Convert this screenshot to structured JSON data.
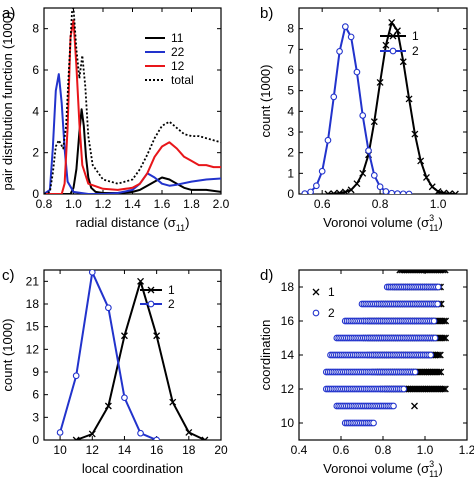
{
  "colors": {
    "black": "#000000",
    "blue": "#2233cc",
    "red": "#e8161a",
    "grey": "#777777",
    "marker_fill": "#ffffff"
  },
  "chart_data": [
    {
      "panel": "a)",
      "type": "line",
      "xlabel": "radial distance",
      "xlabel_sym": "(σ",
      "xlabel_sub": "11",
      "xlabel_end": ")",
      "ylabel": "pair distribution function",
      "ylabel_unit": "(1000)",
      "xlim": [
        0.8,
        2.0
      ],
      "ylim": [
        0,
        9
      ],
      "xticks": [
        0.8,
        1.0,
        1.2,
        1.4,
        1.6,
        1.8,
        2.0
      ],
      "xtick_labels": [
        "0.8",
        "1.0",
        "1.2",
        "1.4",
        "1.6",
        "1.8",
        "2.0"
      ],
      "yticks": [
        0,
        2,
        4,
        6,
        8
      ],
      "ytick_labels": [
        "0",
        "2",
        "4",
        "6",
        "8"
      ],
      "legend_position": "top-right",
      "series": [
        {
          "name": "11",
          "color": "black",
          "dash": "solid",
          "marker": "none",
          "x": [
            0.8,
            0.98,
            1.0,
            1.02,
            1.04,
            1.055,
            1.07,
            1.085,
            1.1,
            1.12,
            1.15,
            1.2,
            1.3,
            1.4,
            1.45,
            1.5,
            1.55,
            1.6,
            1.65,
            1.7,
            1.75,
            1.8,
            1.85,
            1.9,
            1.95,
            2.0
          ],
          "y": [
            0,
            0,
            0.3,
            1.2,
            3.0,
            4.1,
            3.3,
            1.8,
            0.8,
            0.3,
            0.1,
            0.05,
            0.05,
            0.1,
            0.2,
            0.4,
            0.6,
            0.8,
            0.7,
            0.5,
            0.3,
            0.2,
            0.2,
            0.2,
            0.15,
            0.1
          ]
        },
        {
          "name": "22",
          "color": "blue",
          "dash": "solid",
          "marker": "none",
          "x": [
            0.8,
            0.84,
            0.86,
            0.88,
            0.9,
            0.92,
            0.94,
            0.96,
            1.0,
            1.1,
            1.2,
            1.3,
            1.4,
            1.45,
            1.5,
            1.55,
            1.6,
            1.65,
            1.7,
            1.8,
            1.9,
            2.0
          ],
          "y": [
            0,
            0.2,
            2.2,
            5.0,
            5.8,
            4.4,
            2.2,
            0.6,
            0.1,
            0,
            0,
            0.05,
            0.2,
            0.5,
            1.0,
            0.8,
            0.5,
            0.4,
            0.45,
            0.6,
            0.7,
            0.75
          ]
        },
        {
          "name": "12",
          "color": "red",
          "dash": "solid",
          "marker": "none",
          "x": [
            0.8,
            0.92,
            0.94,
            0.96,
            0.98,
            1.0,
            1.02,
            1.04,
            1.06,
            1.1,
            1.2,
            1.3,
            1.4,
            1.45,
            1.5,
            1.55,
            1.6,
            1.65,
            1.7,
            1.75,
            1.8,
            1.85,
            1.9,
            1.95,
            2.0
          ],
          "y": [
            0,
            0,
            0.5,
            3.2,
            7.6,
            8.4,
            6.2,
            3.4,
            1.4,
            0.5,
            0.25,
            0.2,
            0.3,
            0.5,
            1.0,
            1.8,
            2.3,
            2.5,
            2.2,
            1.8,
            1.6,
            1.4,
            1.4,
            1.3,
            1.3
          ]
        },
        {
          "name": "total",
          "color": "black",
          "dash": "dotted",
          "marker": "none",
          "x": [
            0.8,
            0.84,
            0.86,
            0.88,
            0.9,
            0.93,
            0.95,
            0.97,
            0.99,
            1.0,
            1.02,
            1.04,
            1.06,
            1.08,
            1.1,
            1.13,
            1.2,
            1.3,
            1.4,
            1.45,
            1.5,
            1.55,
            1.6,
            1.65,
            1.7,
            1.75,
            1.8,
            1.85,
            1.9,
            1.95,
            2.0
          ],
          "y": [
            0,
            0.1,
            1.0,
            2.3,
            2.6,
            2.2,
            3.3,
            6.2,
            8.8,
            9.0,
            7.0,
            5.6,
            6.7,
            5.2,
            2.8,
            1.4,
            0.7,
            0.5,
            0.7,
            1.2,
            1.9,
            2.7,
            3.3,
            3.5,
            3.2,
            2.9,
            2.8,
            2.8,
            2.7,
            2.6,
            2.5
          ]
        }
      ]
    },
    {
      "panel": "b)",
      "type": "line",
      "xlabel": "Voronoi volume",
      "xlabel_sym": "(σ",
      "xlabel_sup": "3",
      "xlabel_sub": "11",
      "xlabel_end": ")",
      "ylabel": "count (1000)",
      "xlim": [
        0.52,
        1.1
      ],
      "ylim": [
        0,
        9
      ],
      "xticks": [
        0.6,
        0.8,
        1.0
      ],
      "xtick_labels": [
        "0.6",
        "0.8",
        "1.0"
      ],
      "yticks": [
        0,
        1,
        2,
        3,
        4,
        5,
        6,
        7,
        8
      ],
      "ytick_labels": [
        "0",
        "1",
        "2",
        "3",
        "4",
        "5",
        "6",
        "7",
        "8"
      ],
      "legend_position": "top-right",
      "series": [
        {
          "name": "1",
          "color": "black",
          "dash": "solid",
          "marker": "x",
          "x": [
            0.62,
            0.64,
            0.66,
            0.68,
            0.7,
            0.72,
            0.74,
            0.76,
            0.78,
            0.8,
            0.82,
            0.84,
            0.86,
            0.88,
            0.9,
            0.92,
            0.94,
            0.96,
            0.98,
            1.0,
            1.02,
            1.04,
            1.06
          ],
          "y": [
            0.0,
            0.02,
            0.05,
            0.1,
            0.2,
            0.5,
            1.0,
            1.9,
            3.5,
            5.4,
            7.2,
            8.3,
            7.9,
            6.4,
            4.6,
            2.9,
            1.6,
            0.8,
            0.35,
            0.12,
            0.05,
            0.02,
            0.0
          ]
        },
        {
          "name": "2",
          "color": "blue",
          "dash": "solid",
          "marker": "o",
          "x": [
            0.54,
            0.56,
            0.58,
            0.6,
            0.62,
            0.64,
            0.66,
            0.68,
            0.7,
            0.72,
            0.74,
            0.76,
            0.78,
            0.8,
            0.82,
            0.84,
            0.86,
            0.88,
            0.9
          ],
          "y": [
            0.02,
            0.1,
            0.4,
            1.1,
            2.6,
            4.7,
            6.9,
            8.1,
            7.6,
            5.9,
            3.8,
            2.1,
            0.9,
            0.35,
            0.12,
            0.04,
            0.02,
            0.01,
            0.0
          ]
        }
      ]
    },
    {
      "panel": "c)",
      "type": "line",
      "xlabel": "local coordination",
      "ylabel": "count (1000)",
      "xlim": [
        9,
        20
      ],
      "ylim": [
        0,
        22.5
      ],
      "xticks": [
        10,
        12,
        14,
        16,
        18,
        20
      ],
      "xtick_labels": [
        "10",
        "12",
        "14",
        "16",
        "18",
        "20"
      ],
      "yticks": [
        0,
        3,
        6,
        9,
        12,
        15,
        18,
        21
      ],
      "ytick_labels": [
        "0",
        "3",
        "6",
        "9",
        "12",
        "15",
        "18",
        "21"
      ],
      "legend_position": "top-right",
      "series": [
        {
          "name": "1",
          "color": "black",
          "dash": "solid",
          "marker": "x",
          "x": [
            11,
            12,
            13,
            14,
            15,
            16,
            17,
            18,
            19
          ],
          "y": [
            0.0,
            0.8,
            4.5,
            13.8,
            21.0,
            13.8,
            5.0,
            1.0,
            0.0
          ]
        },
        {
          "name": "2",
          "color": "blue",
          "dash": "solid",
          "marker": "o",
          "x": [
            10,
            11,
            12,
            13,
            14,
            15,
            16
          ],
          "y": [
            1.0,
            8.5,
            22.2,
            17.5,
            5.6,
            0.9,
            0.0
          ]
        }
      ]
    },
    {
      "panel": "d)",
      "type": "scatter",
      "xlabel": "Voronoi volume",
      "xlabel_sym": "(σ",
      "xlabel_sup": "3",
      "xlabel_sub": "11",
      "xlabel_end": ")",
      "ylabel": "coordination",
      "xlim": [
        0.4,
        1.2
      ],
      "ylim": [
        9,
        19
      ],
      "xticks": [
        0.4,
        0.6,
        0.8,
        1.0,
        1.2
      ],
      "xtick_labels": [
        "0.4",
        "0.6",
        "0.8",
        "1.0",
        "1.2"
      ],
      "yticks": [
        10,
        12,
        14,
        16,
        18
      ],
      "ytick_labels": [
        "10",
        "12",
        "14",
        "16",
        "18"
      ],
      "legend_position": "top-left",
      "series": [
        {
          "name": "1",
          "color": "black",
          "marker": "x",
          "rows": [
            {
              "coord": 11,
              "min": 0.95,
              "max": 0.95
            },
            {
              "coord": 12,
              "min": 0.8,
              "max": 1.1
            },
            {
              "coord": 13,
              "min": 0.76,
              "max": 1.08
            },
            {
              "coord": 14,
              "min": 0.74,
              "max": 1.08
            },
            {
              "coord": 15,
              "min": 0.72,
              "max": 1.1
            },
            {
              "coord": 16,
              "min": 0.72,
              "max": 1.1
            },
            {
              "coord": 17,
              "min": 0.78,
              "max": 1.08
            },
            {
              "coord": 18,
              "min": 0.84,
              "max": 1.08
            },
            {
              "coord": 19,
              "min": 0.88,
              "max": 1.1
            }
          ]
        },
        {
          "name": "2",
          "color": "blue",
          "marker": "o",
          "rows": [
            {
              "coord": 10,
              "min": 0.62,
              "max": 0.76
            },
            {
              "coord": 11,
              "min": 0.58,
              "max": 0.85
            },
            {
              "coord": 12,
              "min": 0.53,
              "max": 0.9
            },
            {
              "coord": 13,
              "min": 0.53,
              "max": 0.96
            },
            {
              "coord": 14,
              "min": 0.55,
              "max": 1.03
            },
            {
              "coord": 15,
              "min": 0.58,
              "max": 1.05
            },
            {
              "coord": 16,
              "min": 0.62,
              "max": 1.05
            },
            {
              "coord": 17,
              "min": 0.7,
              "max": 1.06
            },
            {
              "coord": 18,
              "min": 0.82,
              "max": 1.07
            }
          ]
        }
      ]
    }
  ]
}
